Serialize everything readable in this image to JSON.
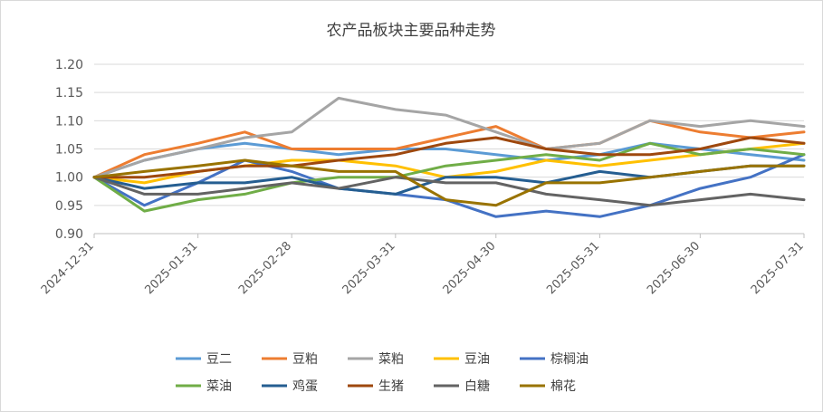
{
  "chart_data": {
    "type": "line",
    "title": "农产品板块主要品种走势",
    "xlabel": "",
    "ylabel": "",
    "ylim": [
      0.9,
      1.2
    ],
    "yticks": [
      "0.90",
      "0.95",
      "1.00",
      "1.05",
      "1.10",
      "1.15",
      "1.20"
    ],
    "xticks": [
      "2024-12-31",
      "2025-01-31",
      "2025-02-28",
      "2025-03-31",
      "2025-04-30",
      "2025-05-31",
      "2025-06-30",
      "2025-07-31"
    ],
    "grid": true,
    "legend_position": "bottom",
    "x": [
      "2024-12-31",
      "2025-01-15",
      "2025-01-31",
      "2025-02-14",
      "2025-02-28",
      "2025-03-14",
      "2025-03-31",
      "2025-04-15",
      "2025-04-30",
      "2025-05-15",
      "2025-05-31",
      "2025-06-15",
      "2025-06-30",
      "2025-07-15",
      "2025-07-31"
    ],
    "series": [
      {
        "name": "豆二",
        "color": "#5b9bd5",
        "values": [
          1.0,
          1.03,
          1.05,
          1.06,
          1.05,
          1.04,
          1.05,
          1.05,
          1.04,
          1.03,
          1.04,
          1.06,
          1.05,
          1.04,
          1.03
        ]
      },
      {
        "name": "豆粕",
        "color": "#ed7d31",
        "values": [
          1.0,
          1.04,
          1.06,
          1.08,
          1.05,
          1.05,
          1.05,
          1.07,
          1.09,
          1.05,
          1.06,
          1.1,
          1.08,
          1.07,
          1.08
        ]
      },
      {
        "name": "菜粕",
        "color": "#a5a5a5",
        "values": [
          1.0,
          1.03,
          1.05,
          1.07,
          1.08,
          1.14,
          1.12,
          1.11,
          1.08,
          1.05,
          1.06,
          1.1,
          1.09,
          1.1,
          1.09
        ]
      },
      {
        "name": "豆油",
        "color": "#ffc000",
        "values": [
          1.0,
          0.99,
          1.01,
          1.02,
          1.03,
          1.03,
          1.02,
          1.0,
          1.01,
          1.03,
          1.02,
          1.03,
          1.04,
          1.05,
          1.06
        ]
      },
      {
        "name": "棕榈油",
        "color": "#4472c4",
        "values": [
          1.0,
          0.95,
          0.99,
          1.03,
          1.01,
          0.98,
          0.97,
          0.96,
          0.93,
          0.94,
          0.93,
          0.95,
          0.98,
          1.0,
          1.04
        ]
      },
      {
        "name": "菜油",
        "color": "#70ad47",
        "values": [
          1.0,
          0.94,
          0.96,
          0.97,
          0.99,
          1.0,
          1.0,
          1.02,
          1.03,
          1.04,
          1.03,
          1.06,
          1.04,
          1.05,
          1.04
        ]
      },
      {
        "name": "鸡蛋",
        "color": "#255e91",
        "values": [
          1.0,
          0.98,
          0.99,
          0.99,
          1.0,
          0.98,
          0.97,
          1.0,
          1.0,
          0.99,
          1.01,
          1.0,
          1.01,
          1.02,
          1.02
        ]
      },
      {
        "name": "生猪",
        "color": "#9e480e",
        "values": [
          1.0,
          1.0,
          1.01,
          1.02,
          1.02,
          1.03,
          1.04,
          1.06,
          1.07,
          1.05,
          1.04,
          1.04,
          1.05,
          1.07,
          1.06
        ]
      },
      {
        "name": "白糖",
        "color": "#636363",
        "values": [
          1.0,
          0.97,
          0.97,
          0.98,
          0.99,
          0.98,
          1.0,
          0.99,
          0.99,
          0.97,
          0.96,
          0.95,
          0.96,
          0.97,
          0.96
        ]
      },
      {
        "name": "棉花",
        "color": "#997300",
        "values": [
          1.0,
          1.01,
          1.02,
          1.03,
          1.02,
          1.01,
          1.01,
          0.96,
          0.95,
          0.99,
          0.99,
          1.0,
          1.01,
          1.02,
          1.02
        ]
      }
    ]
  }
}
